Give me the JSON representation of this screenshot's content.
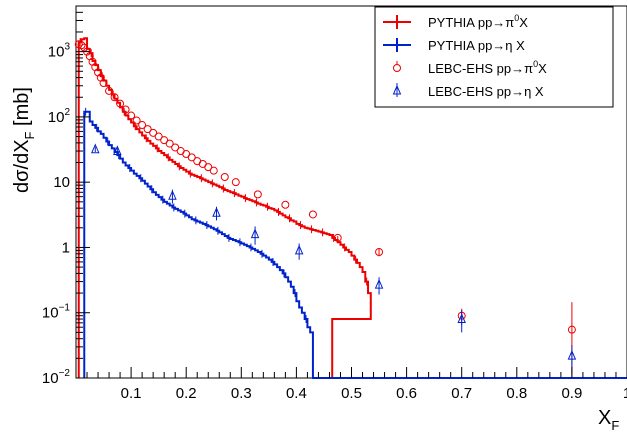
{
  "chart_data": {
    "type": "line",
    "xlabel": "X",
    "xlabel_sub": "F",
    "ylabel_prefix": "dσ/dX",
    "ylabel_sub": "F",
    "ylabel_unit": " [mb]",
    "xlim": [
      0.0,
      1.0
    ],
    "ylim": [
      0.01,
      5000
    ],
    "yscale": "log",
    "grid": false,
    "legend_position": "top-right",
    "x_ticks": [
      {
        "value": 0.1,
        "label": "0.1"
      },
      {
        "value": 0.2,
        "label": "0.2"
      },
      {
        "value": 0.3,
        "label": "0.3"
      },
      {
        "value": 0.4,
        "label": "0.4"
      },
      {
        "value": 0.5,
        "label": "0.5"
      },
      {
        "value": 0.6,
        "label": "0.6"
      },
      {
        "value": 0.7,
        "label": "0.7"
      },
      {
        "value": 0.8,
        "label": "0.8"
      },
      {
        "value": 0.9,
        "label": "0.9"
      },
      {
        "value": 1.0,
        "label": "1"
      }
    ],
    "y_ticks": [
      {
        "value": 0.01,
        "base": "10",
        "exp": "−2"
      },
      {
        "value": 0.1,
        "base": "10",
        "exp": "−1"
      },
      {
        "value": 1,
        "base": "1",
        "exp": ""
      },
      {
        "value": 10,
        "base": "10",
        "exp": ""
      },
      {
        "value": 100,
        "base": "10",
        "exp": "2"
      },
      {
        "value": 1000,
        "base": "10",
        "exp": "3"
      }
    ],
    "legend": [
      {
        "label_main": "PYTHIA pp→π",
        "label_sup": "0",
        "label_end": "X",
        "marker": "line",
        "color": "#ee0000"
      },
      {
        "label_main": "PYTHIA pp→η X",
        "label_sup": "",
        "label_end": "",
        "marker": "line",
        "color": "#0022cc"
      },
      {
        "label_main": "LEBC-EHS pp→π",
        "label_sup": "0",
        "label_end": "X",
        "marker": "circle",
        "color": "#ee0000"
      },
      {
        "label_main": "LEBC-EHS pp→η X",
        "label_sup": "",
        "label_end": "",
        "marker": "triangle",
        "color": "#0022cc"
      }
    ],
    "series": [
      {
        "name": "PYTHIA pp→π0X",
        "kind": "hist",
        "color": "#ee0000",
        "bin_width": 0.005,
        "x_start": 0.005,
        "values": [
          1400,
          1550,
          1600,
          1100,
          950,
          720,
          620,
          520,
          420,
          360,
          300,
          260,
          220,
          190,
          165,
          140,
          120,
          105,
          92,
          82,
          72,
          65,
          58,
          52,
          47,
          43,
          39,
          36,
          33,
          30,
          28,
          26,
          24,
          22,
          20.5,
          19,
          17.5,
          16.5,
          15.5,
          14.5,
          13.5,
          13,
          12.5,
          12,
          11.5,
          11,
          10.5,
          10,
          9.6,
          9.2,
          8.8,
          8.4,
          8.0,
          7.6,
          7.3,
          7.0,
          6.8,
          6.5,
          6.2,
          6.0,
          5.7,
          5.5,
          5.3,
          5.1,
          4.9,
          4.7,
          4.5,
          4.4,
          4.2,
          4.0,
          3.9,
          3.7,
          3.5,
          3.3,
          3.1,
          2.9,
          2.8,
          2.6,
          2.5,
          2.3,
          2.2,
          2.1,
          2.0,
          1.95,
          1.9,
          1.85,
          1.8,
          1.75,
          1.7,
          1.65,
          1.6,
          1.55,
          1.4,
          1.3,
          1.2,
          1.1,
          1.0,
          0.92,
          0.85,
          0.75,
          0.65,
          0.58,
          0.5,
          0.42,
          0.3,
          0.2
        ],
        "tail": [
          {
            "x": 0.465,
            "y": 0.08
          },
          {
            "x": 0.475,
            "y": 0.01
          }
        ]
      },
      {
        "name": "PYTHIA pp→η X",
        "kind": "hist",
        "color": "#0022cc",
        "bin_width": 0.005,
        "x_start": 0.015,
        "values": [
          120,
          120,
          85,
          75,
          68,
          60,
          55,
          48,
          42,
          37,
          33,
          29,
          26,
          23,
          20,
          18,
          16.5,
          15,
          13.5,
          12.5,
          11.5,
          10.5,
          9.5,
          8.6,
          7.8,
          7.0,
          6.4,
          5.9,
          5.4,
          5.0,
          4.7,
          4.4,
          4.1,
          3.9,
          3.7,
          3.5,
          3.3,
          3.1,
          2.9,
          2.7,
          2.6,
          2.5,
          2.4,
          2.3,
          2.2,
          2.1,
          2.0,
          1.9,
          1.8,
          1.7,
          1.6,
          1.5,
          1.4,
          1.35,
          1.3,
          1.25,
          1.2,
          1.15,
          1.1,
          1.05,
          1.0,
          0.95,
          0.9,
          0.85,
          0.8,
          0.75,
          0.7,
          0.65,
          0.6,
          0.55,
          0.5,
          0.45,
          0.4,
          0.35,
          0.3,
          0.25,
          0.2,
          0.15,
          0.12,
          0.1,
          0.08,
          0.06,
          0.05
        ],
        "tail": [
          {
            "x": 0.46,
            "y": 0.01
          }
        ]
      },
      {
        "name": "LEBC-EHS pp→π0X",
        "kind": "points",
        "marker": "circle",
        "color": "#ee0000",
        "x": [
          0.005,
          0.01,
          0.015,
          0.02,
          0.025,
          0.03,
          0.035,
          0.04,
          0.045,
          0.05,
          0.06,
          0.07,
          0.08,
          0.09,
          0.1,
          0.11,
          0.12,
          0.13,
          0.14,
          0.15,
          0.16,
          0.17,
          0.18,
          0.19,
          0.2,
          0.21,
          0.22,
          0.23,
          0.24,
          0.25,
          0.27,
          0.29,
          0.33,
          0.38,
          0.43,
          0.475,
          0.55,
          0.7,
          0.9
        ],
        "y": [
          1300,
          1250,
          1150,
          1000,
          850,
          700,
          580,
          480,
          400,
          330,
          250,
          200,
          160,
          130,
          105,
          88,
          75,
          65,
          57,
          50,
          44,
          39,
          34,
          30,
          27,
          24,
          21,
          19,
          17,
          15,
          12,
          10,
          6.5,
          4.5,
          3.2,
          1.4,
          0.85,
          0.09,
          0.055
        ],
        "err": [
          0,
          0,
          0,
          0,
          0,
          0,
          0,
          0,
          0,
          0,
          0,
          0,
          0,
          0,
          0,
          0,
          0,
          0,
          0,
          0,
          0,
          0,
          0,
          0,
          0,
          0,
          0,
          0,
          0,
          0,
          0,
          0,
          0,
          0,
          0,
          0.1,
          0.12,
          0.025,
          0.09
        ]
      },
      {
        "name": "LEBC-EHS pp→η X",
        "kind": "points",
        "marker": "triangle",
        "color": "#0022cc",
        "x": [
          0.035,
          0.075,
          0.175,
          0.255,
          0.325,
          0.405,
          0.55,
          0.7,
          0.9
        ],
        "y": [
          32,
          30,
          6.2,
          3.4,
          1.6,
          0.9,
          0.27,
          0.08,
          0.022
        ],
        "err": [
          3,
          4,
          1.5,
          0.8,
          0.5,
          0.25,
          0.08,
          0.03,
          0.01
        ]
      }
    ]
  }
}
